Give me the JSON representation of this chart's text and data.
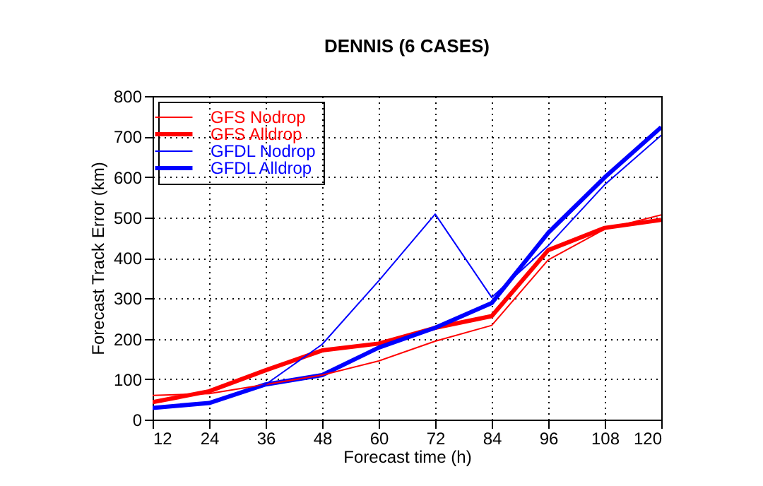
{
  "chart_data": {
    "type": "line",
    "title": "DENNIS (6 CASES)",
    "xlabel": "Forecast time (h)",
    "ylabel": "Forecast Track Error (km)",
    "x": [
      12,
      24,
      36,
      48,
      60,
      72,
      84,
      96,
      108,
      120
    ],
    "series": [
      {
        "name": "GFS Nodrop",
        "color": "#ff0000",
        "values": [
          60,
          64,
          87,
          110,
          145,
          194,
          233,
          395,
          471,
          506
        ]
      },
      {
        "name": "GFS Alldrop",
        "color": "#ff0000",
        "values": [
          43,
          70,
          122,
          171,
          188,
          227,
          256,
          419,
          474,
          494
        ]
      },
      {
        "name": "GFDL Nodrop",
        "color": "#0000ff",
        "values": [
          29,
          41,
          87,
          186,
          343,
          508,
          302,
          430,
          581,
          703
        ]
      },
      {
        "name": "GFDL Alldrop",
        "color": "#0000ff",
        "values": [
          29,
          41,
          87,
          110,
          178,
          227,
          288,
          462,
          599,
          723
        ]
      }
    ],
    "xlim": [
      12,
      120
    ],
    "xticks": [
      12,
      24,
      36,
      48,
      60,
      72,
      84,
      96,
      108,
      120
    ],
    "ylim": [
      0,
      800
    ],
    "yticks": [
      0,
      100,
      200,
      300,
      400,
      500,
      600,
      700,
      800
    ],
    "grid": true,
    "legend": "top left",
    "marker": "none",
    "line_style": "solid"
  }
}
